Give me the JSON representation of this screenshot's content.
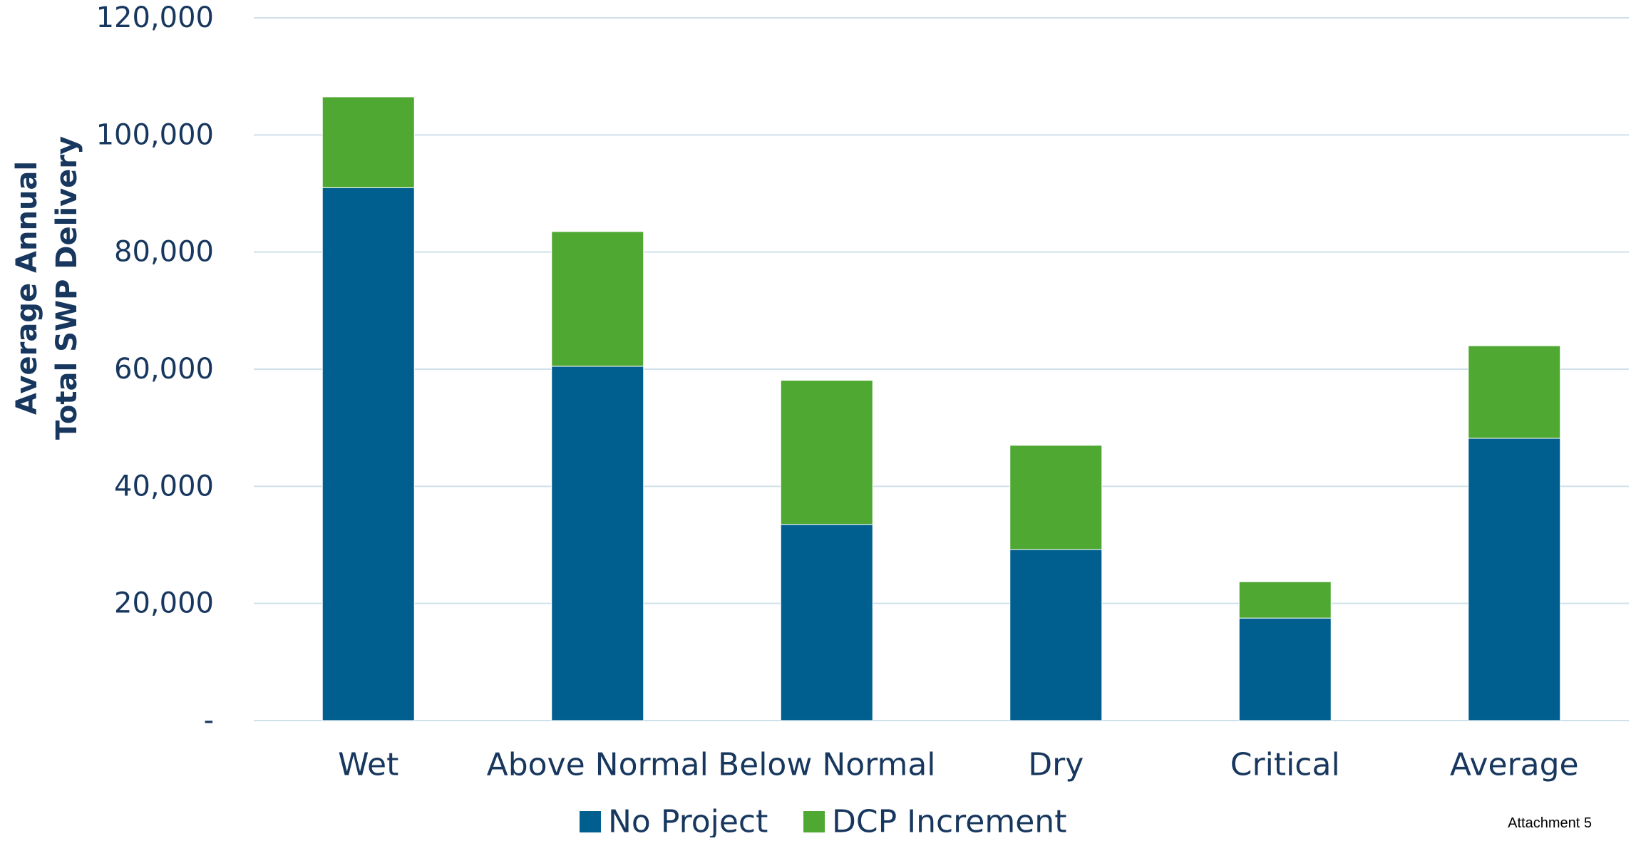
{
  "chart_data": {
    "type": "bar",
    "stacked": true,
    "title": "",
    "xlabel": "",
    "ylabel": [
      "Average Annual",
      "Total SWP Delivery"
    ],
    "ylim": [
      0,
      120000
    ],
    "ytick_values": [
      0,
      20000,
      40000,
      60000,
      80000,
      100000,
      120000
    ],
    "ytick_labels": [
      "-",
      "20,000",
      "40,000",
      "60,000",
      "80,000",
      "100,000",
      "120,000"
    ],
    "grid": true,
    "legend_position": "bottom",
    "categories": [
      "Wet",
      "Above Normal",
      "Below Normal",
      "Dry",
      "Critical",
      "Average"
    ],
    "series": [
      {
        "name": "No Project",
        "color": "#005f8f",
        "values": [
          91000,
          60500,
          33500,
          29200,
          17500,
          48200
        ]
      },
      {
        "name": "DCP Increment",
        "color": "#4ea832",
        "values": [
          15500,
          23000,
          24600,
          17800,
          6200,
          15800
        ]
      }
    ]
  },
  "footer": {
    "note": "Attachment 5"
  }
}
